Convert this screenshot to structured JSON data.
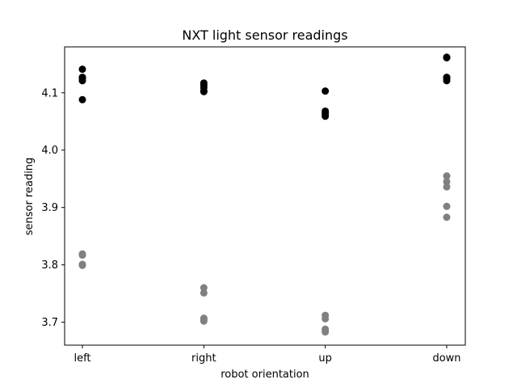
{
  "chart_data": {
    "type": "scatter",
    "title": "NXT light sensor readings",
    "xlabel": "robot orientation",
    "ylabel": "sensor reading",
    "categories": [
      "left",
      "right",
      "up",
      "down"
    ],
    "ylim": [
      3.66,
      4.18
    ],
    "yticks": [
      "3.7",
      "3.8",
      "3.9",
      "4.0",
      "4.1"
    ],
    "grid": false,
    "series": [
      {
        "color": "#000000",
        "points": [
          {
            "x": "left",
            "y": 4.141
          },
          {
            "x": "left",
            "y": 4.127
          },
          {
            "x": "left",
            "y": 4.125
          },
          {
            "x": "left",
            "y": 4.121
          },
          {
            "x": "left",
            "y": 4.088
          },
          {
            "x": "right",
            "y": 4.117
          },
          {
            "x": "right",
            "y": 4.113
          },
          {
            "x": "right",
            "y": 4.109
          },
          {
            "x": "right",
            "y": 4.103
          },
          {
            "x": "right",
            "y": 4.102
          },
          {
            "x": "up",
            "y": 4.103
          },
          {
            "x": "up",
            "y": 4.068
          },
          {
            "x": "up",
            "y": 4.065
          },
          {
            "x": "up",
            "y": 4.062
          },
          {
            "x": "up",
            "y": 4.059
          },
          {
            "x": "down",
            "y": 4.162
          },
          {
            "x": "down",
            "y": 4.161
          },
          {
            "x": "down",
            "y": 4.127
          },
          {
            "x": "down",
            "y": 4.125
          },
          {
            "x": "down",
            "y": 4.121
          }
        ]
      },
      {
        "color": "#808080",
        "points": [
          {
            "x": "left",
            "y": 3.819
          },
          {
            "x": "left",
            "y": 3.817
          },
          {
            "x": "left",
            "y": 3.801
          },
          {
            "x": "left",
            "y": 3.8
          },
          {
            "x": "left",
            "y": 3.799
          },
          {
            "x": "right",
            "y": 3.76
          },
          {
            "x": "right",
            "y": 3.751
          },
          {
            "x": "right",
            "y": 3.707
          },
          {
            "x": "right",
            "y": 3.705
          },
          {
            "x": "right",
            "y": 3.702
          },
          {
            "x": "up",
            "y": 3.712
          },
          {
            "x": "up",
            "y": 3.706
          },
          {
            "x": "up",
            "y": 3.688
          },
          {
            "x": "up",
            "y": 3.685
          },
          {
            "x": "up",
            "y": 3.683
          },
          {
            "x": "down",
            "y": 3.955
          },
          {
            "x": "down",
            "y": 3.945
          },
          {
            "x": "down",
            "y": 3.936
          },
          {
            "x": "down",
            "y": 3.902
          },
          {
            "x": "down",
            "y": 3.883
          }
        ]
      }
    ]
  }
}
